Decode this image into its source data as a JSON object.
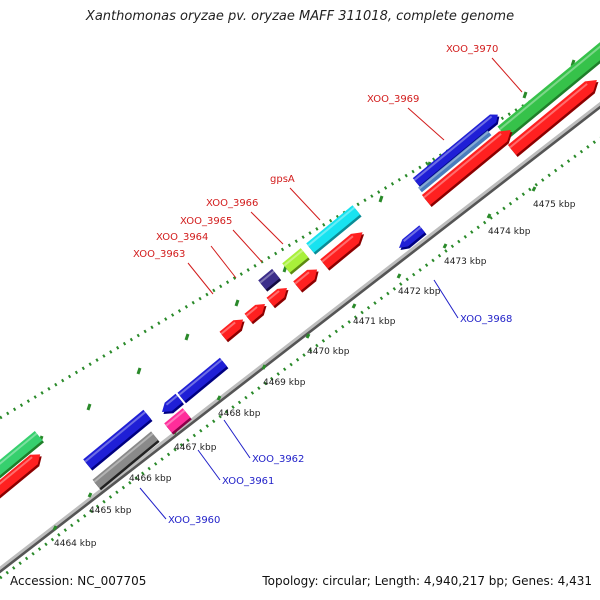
{
  "title": "Xanthomonas oryzae pv. oryzae MAFF 311018, complete genome",
  "footer": {
    "accession": "Accession: NC_007705",
    "summary": "Topology: circular; Length: 4,940,217 bp; Genes: 4,431"
  },
  "colors": {
    "label_red": "#d21c1c",
    "label_blue": "#1f1fc8",
    "tick": "#2a8a2a"
  },
  "ticks": [
    "4464 kbp",
    "4465 kbp",
    "4466 kbp",
    "4467 kbp",
    "4468 kbp",
    "4469 kbp",
    "4470 kbp",
    "4471 kbp",
    "4472 kbp",
    "4473 kbp",
    "4474 kbp",
    "4475 kbp"
  ],
  "gene_labels": [
    {
      "text": "XOO_3970",
      "color": "red"
    },
    {
      "text": "XOO_3969",
      "color": "red"
    },
    {
      "text": "gpsA",
      "color": "red"
    },
    {
      "text": "XOO_3966",
      "color": "red"
    },
    {
      "text": "XOO_3965",
      "color": "red"
    },
    {
      "text": "XOO_3964",
      "color": "red"
    },
    {
      "text": "XOO_3963",
      "color": "red"
    },
    {
      "text": "XOO_3968",
      "color": "blue"
    },
    {
      "text": "XOO_3962",
      "color": "blue"
    },
    {
      "text": "XOO_3961",
      "color": "blue"
    },
    {
      "text": "XOO_3960",
      "color": "blue"
    }
  ]
}
